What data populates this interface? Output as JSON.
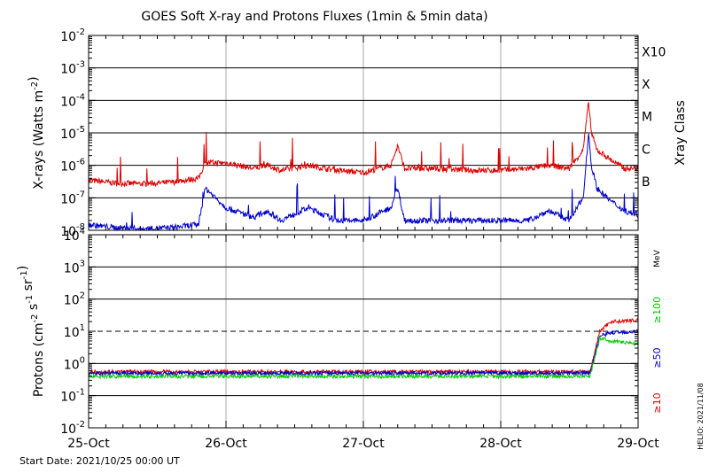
{
  "chart_data": [
    {
      "type": "line",
      "title": "GOES Soft X-ray and Protons Fluxes   (1min & 5min data)",
      "xlabel": "",
      "ylabel": "X-rays (Watts m^-2)",
      "y_scale": "log",
      "ylim": [
        1e-08,
        0.01
      ],
      "y_tick_labels": [
        {
          "mant": "10",
          "exp": "-2"
        },
        {
          "mant": "10",
          "exp": "-3"
        },
        {
          "mant": "10",
          "exp": "-4"
        },
        {
          "mant": "10",
          "exp": "-5"
        },
        {
          "mant": "10",
          "exp": "-6"
        },
        {
          "mant": "10",
          "exp": "-7"
        },
        {
          "mant": "10",
          "exp": "-8"
        }
      ],
      "right_axis_label": "Xray Class",
      "xray_classes": [
        "X10",
        "X",
        "M",
        "C",
        "B"
      ],
      "xray_class_thresholds": [
        0.001,
        0.0001,
        1e-05,
        1e-06,
        1e-07
      ],
      "grid": true,
      "series": [
        {
          "color": "#dd0000",
          "x": [
            25.0,
            25.2,
            25.4,
            25.6,
            25.8,
            25.85,
            26.0,
            26.2,
            26.3,
            26.4,
            26.6,
            26.8,
            27.0,
            27.2,
            27.25,
            27.3,
            27.5,
            27.8,
            28.0,
            28.2,
            28.35,
            28.5,
            28.6,
            28.64,
            28.66,
            28.7,
            28.8,
            28.9,
            29.0
          ],
          "values": [
            3.5e-07,
            2.8e-07,
            2.7e-07,
            3e-07,
            4e-07,
            1.2e-06,
            1.2e-06,
            8e-07,
            1e-06,
            7e-07,
            1e-06,
            7e-07,
            6e-07,
            1e-06,
            4e-06,
            8e-07,
            8e-07,
            7e-07,
            7e-07,
            8e-07,
            1e-06,
            8e-07,
            3e-06,
            9e-05,
            1e-05,
            3e-06,
            1.5e-06,
            8e-07,
            8e-07
          ]
        },
        {
          "color": "#0000cc",
          "x": [
            25.0,
            25.2,
            25.4,
            25.6,
            25.8,
            25.85,
            26.0,
            26.2,
            26.3,
            26.4,
            26.6,
            26.8,
            27.0,
            27.2,
            27.25,
            27.3,
            27.5,
            27.8,
            28.0,
            28.2,
            28.35,
            28.5,
            28.6,
            28.64,
            28.66,
            28.7,
            28.8,
            28.9,
            29.0
          ],
          "values": [
            1.5e-08,
            1.2e-08,
            1.1e-08,
            1.2e-08,
            1.5e-08,
            2e-07,
            5e-08,
            2.5e-08,
            4e-08,
            2e-08,
            5e-08,
            2e-08,
            2e-08,
            5e-08,
            2e-07,
            2e-08,
            2e-08,
            2e-08,
            2e-08,
            2e-08,
            4e-08,
            2e-08,
            1e-07,
            1e-05,
            1e-06,
            2e-07,
            8e-08,
            4e-08,
            3e-08
          ]
        }
      ]
    },
    {
      "type": "line",
      "xlabel": "",
      "ylabel": "Protons (cm^-2 s^-1 sr^-1)",
      "y_scale": "log",
      "ylim": [
        0.01,
        10000
      ],
      "y_tick_labels": [
        {
          "mant": "10",
          "exp": "4"
        },
        {
          "mant": "10",
          "exp": "3"
        },
        {
          "mant": "10",
          "exp": "2"
        },
        {
          "mant": "10",
          "exp": "1"
        },
        {
          "mant": "10",
          "exp": "0"
        },
        {
          "mant": "10",
          "exp": "-1"
        },
        {
          "mant": "10",
          "exp": "-2"
        }
      ],
      "x_tick_labels": [
        "25-Oct",
        "26-Oct",
        "27-Oct",
        "28-Oct",
        "29-Oct"
      ],
      "x_ticks": [
        25,
        26,
        27,
        28,
        29
      ],
      "threshold_value": 10,
      "right_unit_label": "MeV",
      "grid": true,
      "series": [
        {
          "name": "≥10",
          "color": "#dd0000",
          "x": [
            25.0,
            26.0,
            27.0,
            28.0,
            28.65,
            28.72,
            28.8,
            29.0
          ],
          "values": [
            0.55,
            0.55,
            0.55,
            0.55,
            0.55,
            10,
            20,
            22
          ]
        },
        {
          "name": "≥50",
          "color": "#0000cc",
          "x": [
            25.0,
            26.0,
            27.0,
            28.0,
            28.65,
            28.72,
            28.8,
            29.0
          ],
          "values": [
            0.5,
            0.5,
            0.5,
            0.5,
            0.5,
            7,
            9,
            10
          ]
        },
        {
          "name": "≥100",
          "color": "#00cc00",
          "x": [
            25.0,
            26.0,
            27.0,
            28.0,
            28.65,
            28.72,
            28.8,
            29.0
          ],
          "values": [
            0.4,
            0.4,
            0.4,
            0.4,
            0.4,
            6,
            5,
            4
          ]
        }
      ]
    }
  ],
  "footer": {
    "start_date": "Start Date: 2021/10/25 00:00 UT",
    "credit": "HELIO: 2021/11/08"
  }
}
